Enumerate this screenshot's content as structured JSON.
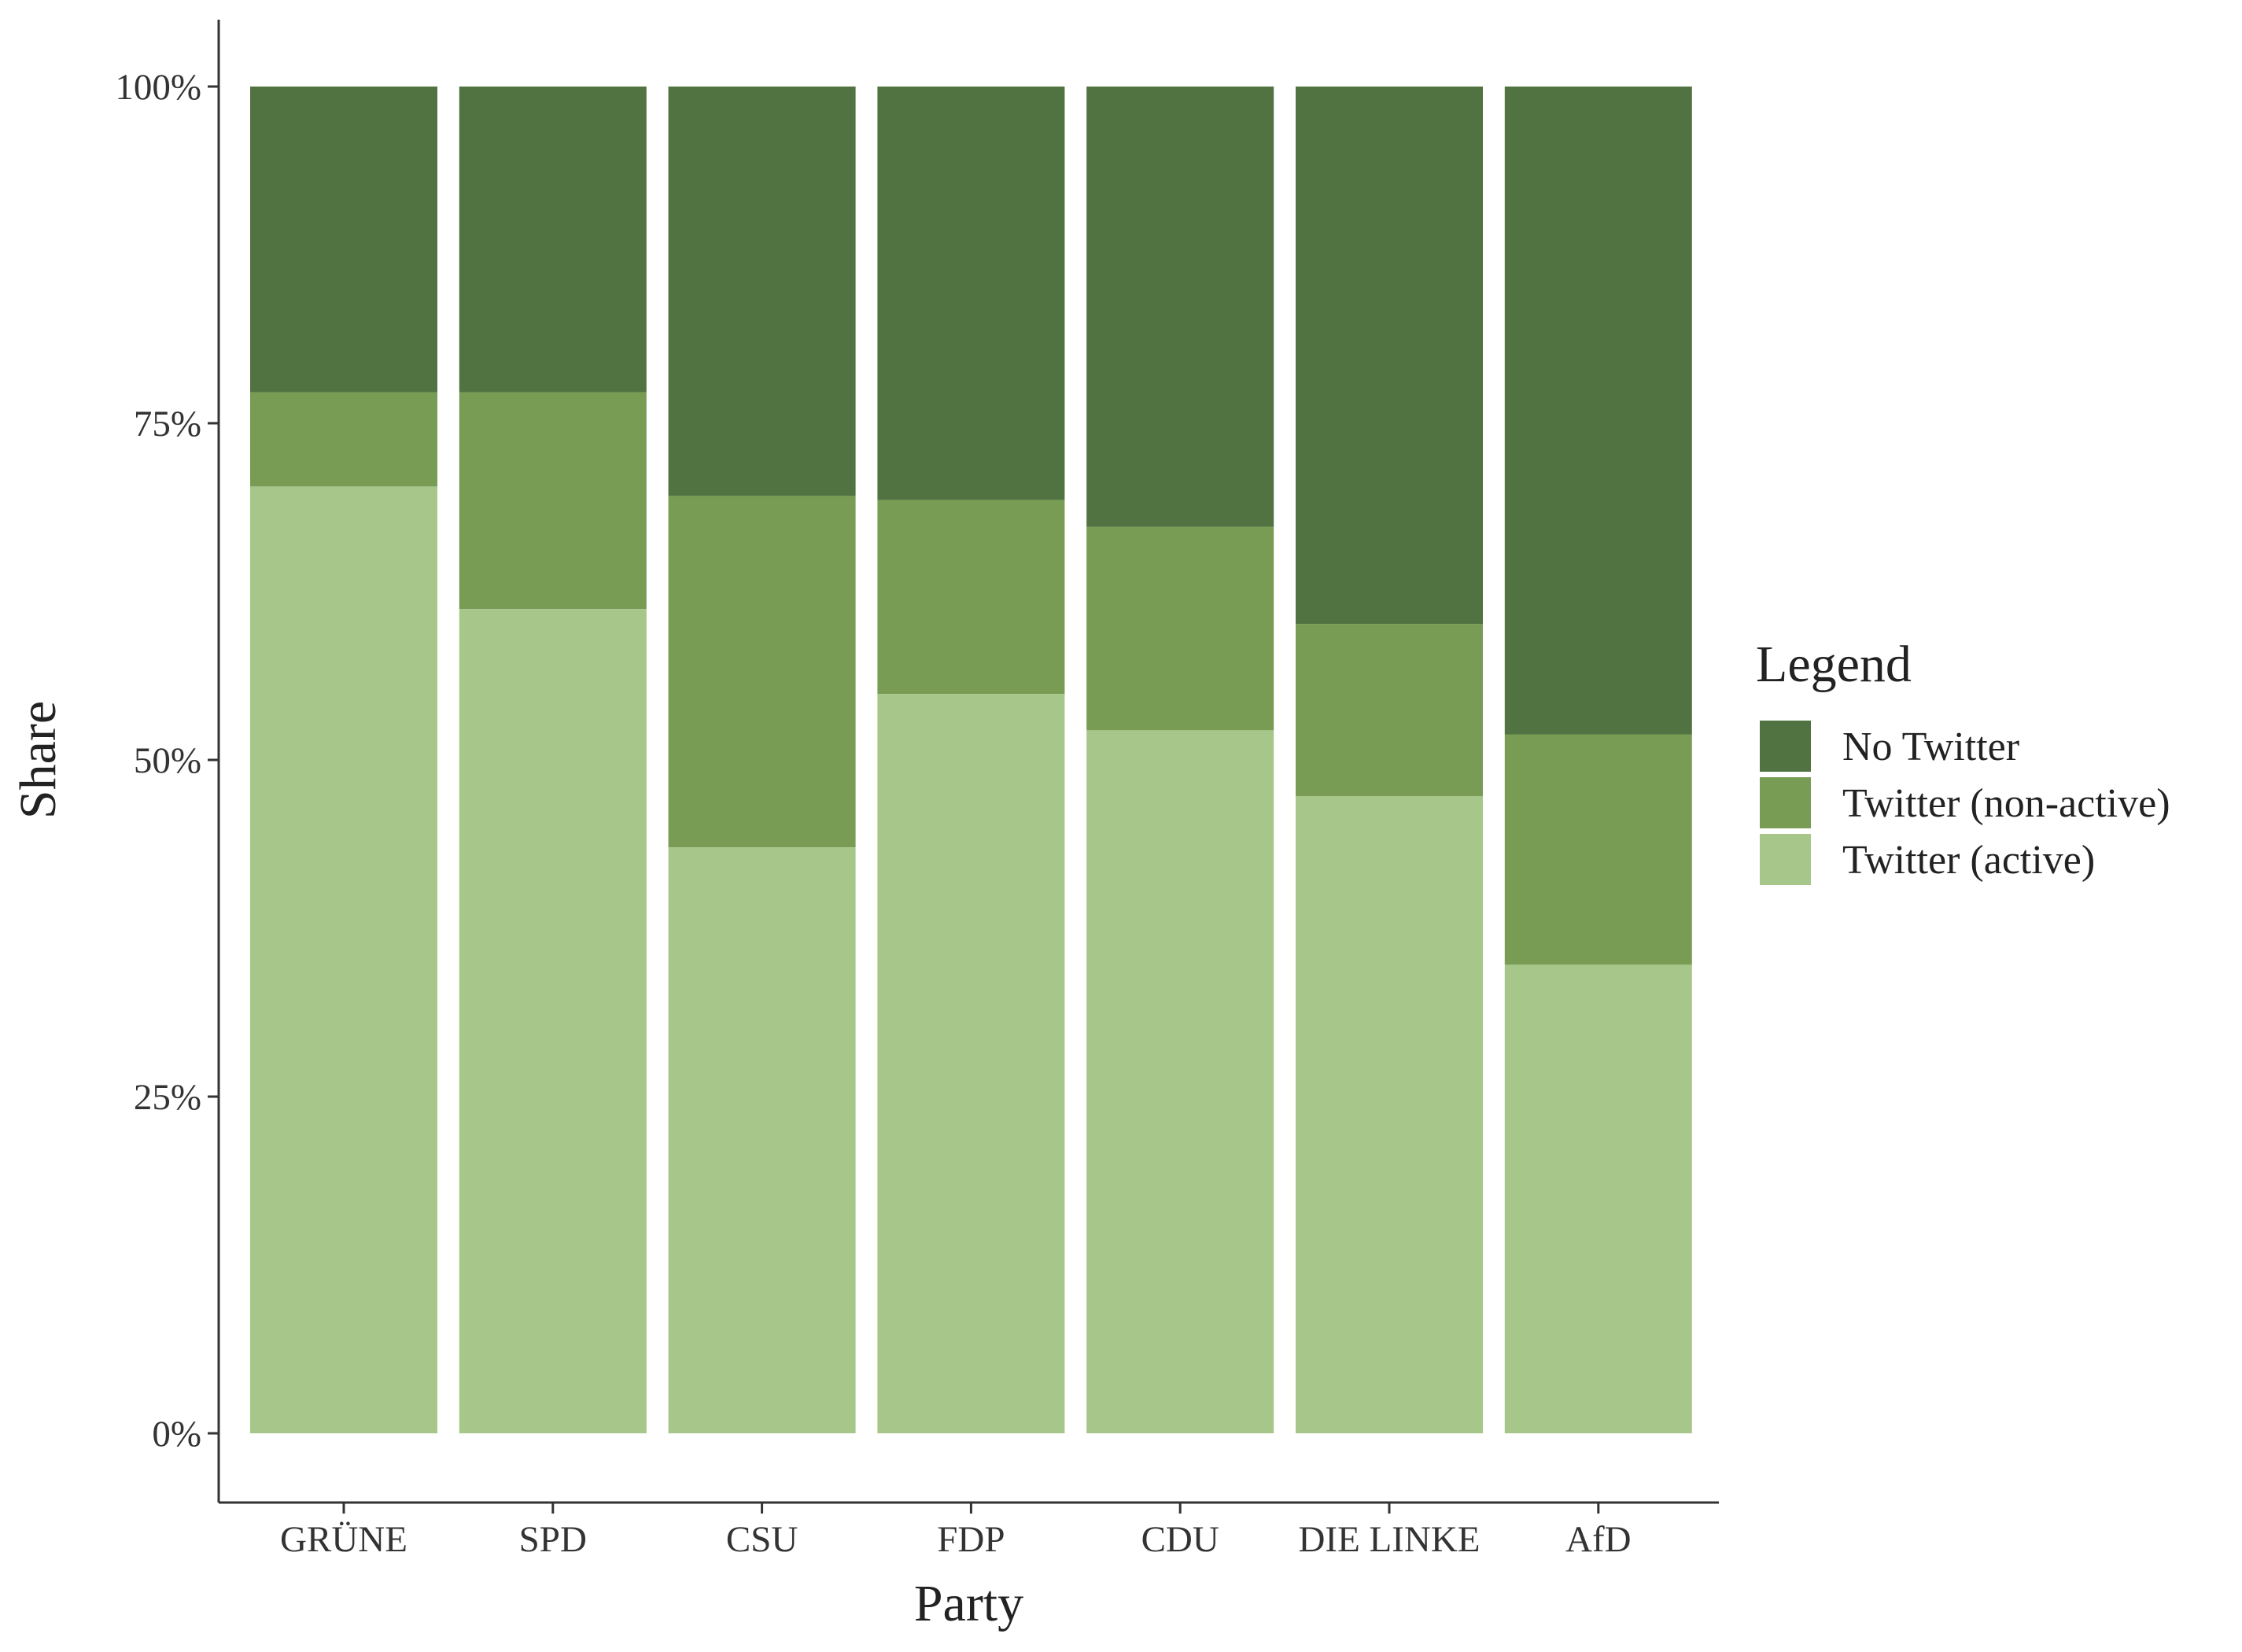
{
  "chart_data": {
    "type": "bar",
    "stacked": true,
    "xlabel": "Party",
    "ylabel": "Share",
    "ylim": [
      0,
      1
    ],
    "yticks": [
      0,
      0.25,
      0.5,
      0.75,
      1
    ],
    "ytick_labels": [
      "0%",
      "25%",
      "50%",
      "75%",
      "100%"
    ],
    "grid": false,
    "legend_title": "Legend",
    "legend_position": "right",
    "categories": [
      "GRÜNE",
      "SPD",
      "CSU",
      "FDP",
      "CDU",
      "DIE LINKE",
      "AfD"
    ],
    "series": [
      {
        "name": "Twitter (active)",
        "color": "#a6c789",
        "values": [
          0.703,
          0.612,
          0.435,
          0.549,
          0.522,
          0.473,
          0.348
        ]
      },
      {
        "name": "Twitter (non-active)",
        "color": "#789c54",
        "values": [
          0.07,
          0.161,
          0.261,
          0.144,
          0.151,
          0.128,
          0.171
        ]
      },
      {
        "name": "No Twitter",
        "color": "#517341",
        "values": [
          0.227,
          0.227,
          0.304,
          0.307,
          0.327,
          0.399,
          0.481
        ]
      }
    ],
    "legend_order": [
      "No Twitter",
      "Twitter (non-active)",
      "Twitter (active)"
    ]
  }
}
